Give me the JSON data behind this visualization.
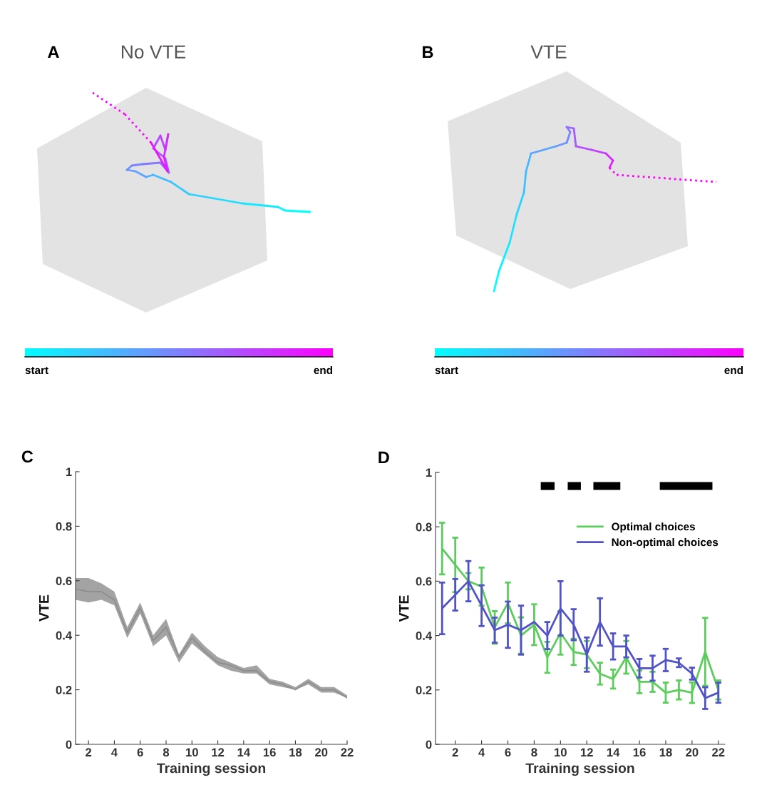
{
  "chart_data": [
    {
      "type": "other",
      "title": "No VTE",
      "annotations": [
        "A",
        "start",
        "end"
      ],
      "colors": [
        "#00ffff",
        "#ff00ff"
      ]
    },
    {
      "type": "other",
      "title": "VTE",
      "annotations": [
        "B",
        "start",
        "end"
      ],
      "colors": [
        "#00ffff",
        "#ff00ff"
      ]
    },
    {
      "type": "line",
      "xlabel": "Training session",
      "ylabel": "VTE",
      "annotations": [
        "C"
      ],
      "x": [
        1,
        2,
        3,
        4,
        5,
        6,
        7,
        8,
        9,
        10,
        11,
        12,
        13,
        14,
        15,
        16,
        17,
        18,
        19,
        20,
        21,
        22
      ],
      "series": [
        {
          "color": "#8c8c8c",
          "values": [
            0.57,
            0.56,
            0.56,
            0.53,
            0.41,
            0.5,
            0.38,
            0.43,
            0.32,
            0.39,
            0.34,
            0.3,
            0.29,
            0.27,
            0.27,
            0.23,
            0.22,
            0.2,
            0.23,
            0.2,
            0.2,
            0.17
          ],
          "lower": [
            0.53,
            0.52,
            0.53,
            0.51,
            0.39,
            0.48,
            0.36,
            0.4,
            0.3,
            0.37,
            0.33,
            0.29,
            0.27,
            0.26,
            0.26,
            0.22,
            0.21,
            0.2,
            0.22,
            0.19,
            0.19,
            0.17
          ],
          "upper": [
            0.61,
            0.61,
            0.59,
            0.56,
            0.43,
            0.52,
            0.4,
            0.46,
            0.33,
            0.41,
            0.36,
            0.32,
            0.3,
            0.28,
            0.29,
            0.24,
            0.23,
            0.21,
            0.24,
            0.21,
            0.21,
            0.18
          ]
        }
      ],
      "xlim": [
        1,
        22
      ],
      "ylim": [
        0,
        1
      ],
      "xticks": [
        2,
        4,
        6,
        8,
        10,
        12,
        14,
        16,
        18,
        20,
        22
      ],
      "yticks": [
        0,
        0.2,
        0.4,
        0.6,
        0.8,
        1
      ],
      "grid": false,
      "marker": "none",
      "line_style": "solid"
    },
    {
      "type": "line",
      "xlabel": "Training session",
      "ylabel": "VTE",
      "annotations": [
        "D"
      ],
      "x": [
        1,
        2,
        3,
        4,
        5,
        6,
        7,
        8,
        9,
        10,
        11,
        12,
        13,
        14,
        15,
        16,
        17,
        18,
        19,
        20,
        21,
        22
      ],
      "series": [
        {
          "name": "Optimal choices",
          "color": "#5ccc5c",
          "values": [
            0.72,
            0.66,
            0.6,
            0.58,
            0.43,
            0.52,
            0.4,
            0.44,
            0.32,
            0.41,
            0.34,
            0.33,
            0.26,
            0.24,
            0.32,
            0.23,
            0.23,
            0.19,
            0.2,
            0.19,
            0.34,
            0.2
          ],
          "errors": [
            0.095,
            0.1,
            0.03,
            0.07,
            0.06,
            0.075,
            0.067,
            0.075,
            0.057,
            0.08,
            0.048,
            0.05,
            0.04,
            0.035,
            0.06,
            0.042,
            0.037,
            0.037,
            0.035,
            0.038,
            0.125,
            0.035
          ]
        },
        {
          "name": "Non-optimal choices",
          "color": "#5252c8",
          "values": [
            0.5,
            0.55,
            0.6,
            0.51,
            0.42,
            0.44,
            0.42,
            0.45,
            0.4,
            0.5,
            0.44,
            0.33,
            0.45,
            0.36,
            0.36,
            0.28,
            0.28,
            0.31,
            0.3,
            0.26,
            0.17,
            0.19
          ],
          "errors": [
            0.095,
            0.058,
            0.074,
            0.075,
            0.046,
            0.085,
            0.09,
            null,
            0.05,
            0.1,
            0.057,
            0.063,
            0.087,
            0.048,
            0.04,
            0.034,
            0.046,
            0.041,
            0.016,
            0.022,
            0.04,
            0.037
          ]
        },
        {
          "color": "#000000",
          "x": [
            8.5,
            9.55
          ],
          "values": [
            0.95,
            0.95
          ]
        },
        {
          "color": "#000000",
          "x": [
            10.55,
            11.55
          ],
          "values": [
            0.95,
            0.95
          ]
        },
        {
          "color": "#000000",
          "x": [
            12.5,
            14.55
          ],
          "values": [
            0.95,
            0.95
          ]
        },
        {
          "color": "#000000",
          "x": [
            17.55,
            21.55
          ],
          "values": [
            0.95,
            0.95
          ]
        }
      ],
      "xlim": [
        0.5,
        22.5
      ],
      "ylim": [
        0,
        1
      ],
      "xticks": [
        2,
        4,
        6,
        8,
        10,
        12,
        14,
        16,
        18,
        20,
        22
      ],
      "yticks": [
        0,
        0.2,
        0.4,
        0.6,
        0.8,
        1
      ],
      "grid": false,
      "legend": "top right",
      "marker": "none",
      "line_style": "solid"
    }
  ]
}
